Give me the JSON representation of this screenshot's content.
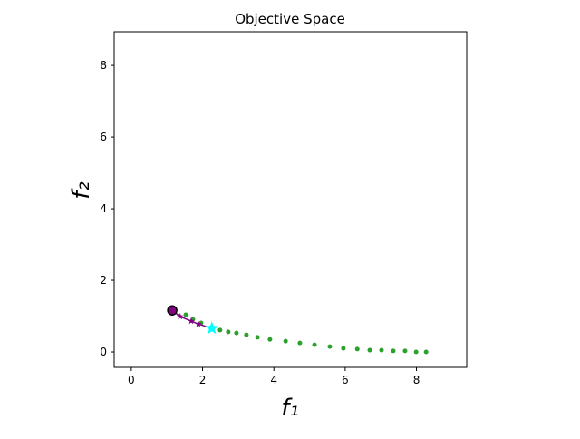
{
  "chart_data": {
    "type": "scatter",
    "title": "Objective Space",
    "xlabel": "f₁",
    "ylabel": "f₂",
    "xlim": [
      -0.48,
      9.41
    ],
    "ylim": [
      -0.43,
      8.94
    ],
    "xticks": [
      0,
      2,
      4,
      6,
      8
    ],
    "yticks": [
      0,
      2,
      4,
      6,
      8
    ],
    "series": [
      {
        "color": "#2ca02c",
        "marker": "dot",
        "line": false,
        "x": [
          1.53,
          1.73,
          1.96,
          2.24,
          2.49,
          2.72,
          2.95,
          3.23,
          3.54,
          3.89,
          4.33,
          4.73,
          5.14,
          5.57,
          5.95,
          6.34,
          6.69,
          7.02,
          7.35,
          7.68,
          7.99,
          8.27
        ],
        "values": [
          1.04,
          0.91,
          0.81,
          0.68,
          0.61,
          0.56,
          0.53,
          0.48,
          0.41,
          0.35,
          0.3,
          0.25,
          0.2,
          0.15,
          0.1,
          0.08,
          0.05,
          0.05,
          0.03,
          0.03,
          0,
          0
        ]
      },
      {
        "color": "#800080",
        "marker": "star",
        "line": true,
        "x": [
          1.15,
          1.37,
          1.68,
          1.88,
          2.26
        ],
        "values": [
          1.16,
          0.99,
          0.86,
          0.78,
          0.66
        ]
      },
      {
        "color": "#800080",
        "marker": "circle",
        "line": false,
        "x": [
          1.15
        ],
        "values": [
          1.16
        ]
      },
      {
        "color": "#00ffff",
        "marker": "bigstar",
        "line": false,
        "x": [
          2.26
        ],
        "values": [
          0.66
        ]
      }
    ]
  }
}
